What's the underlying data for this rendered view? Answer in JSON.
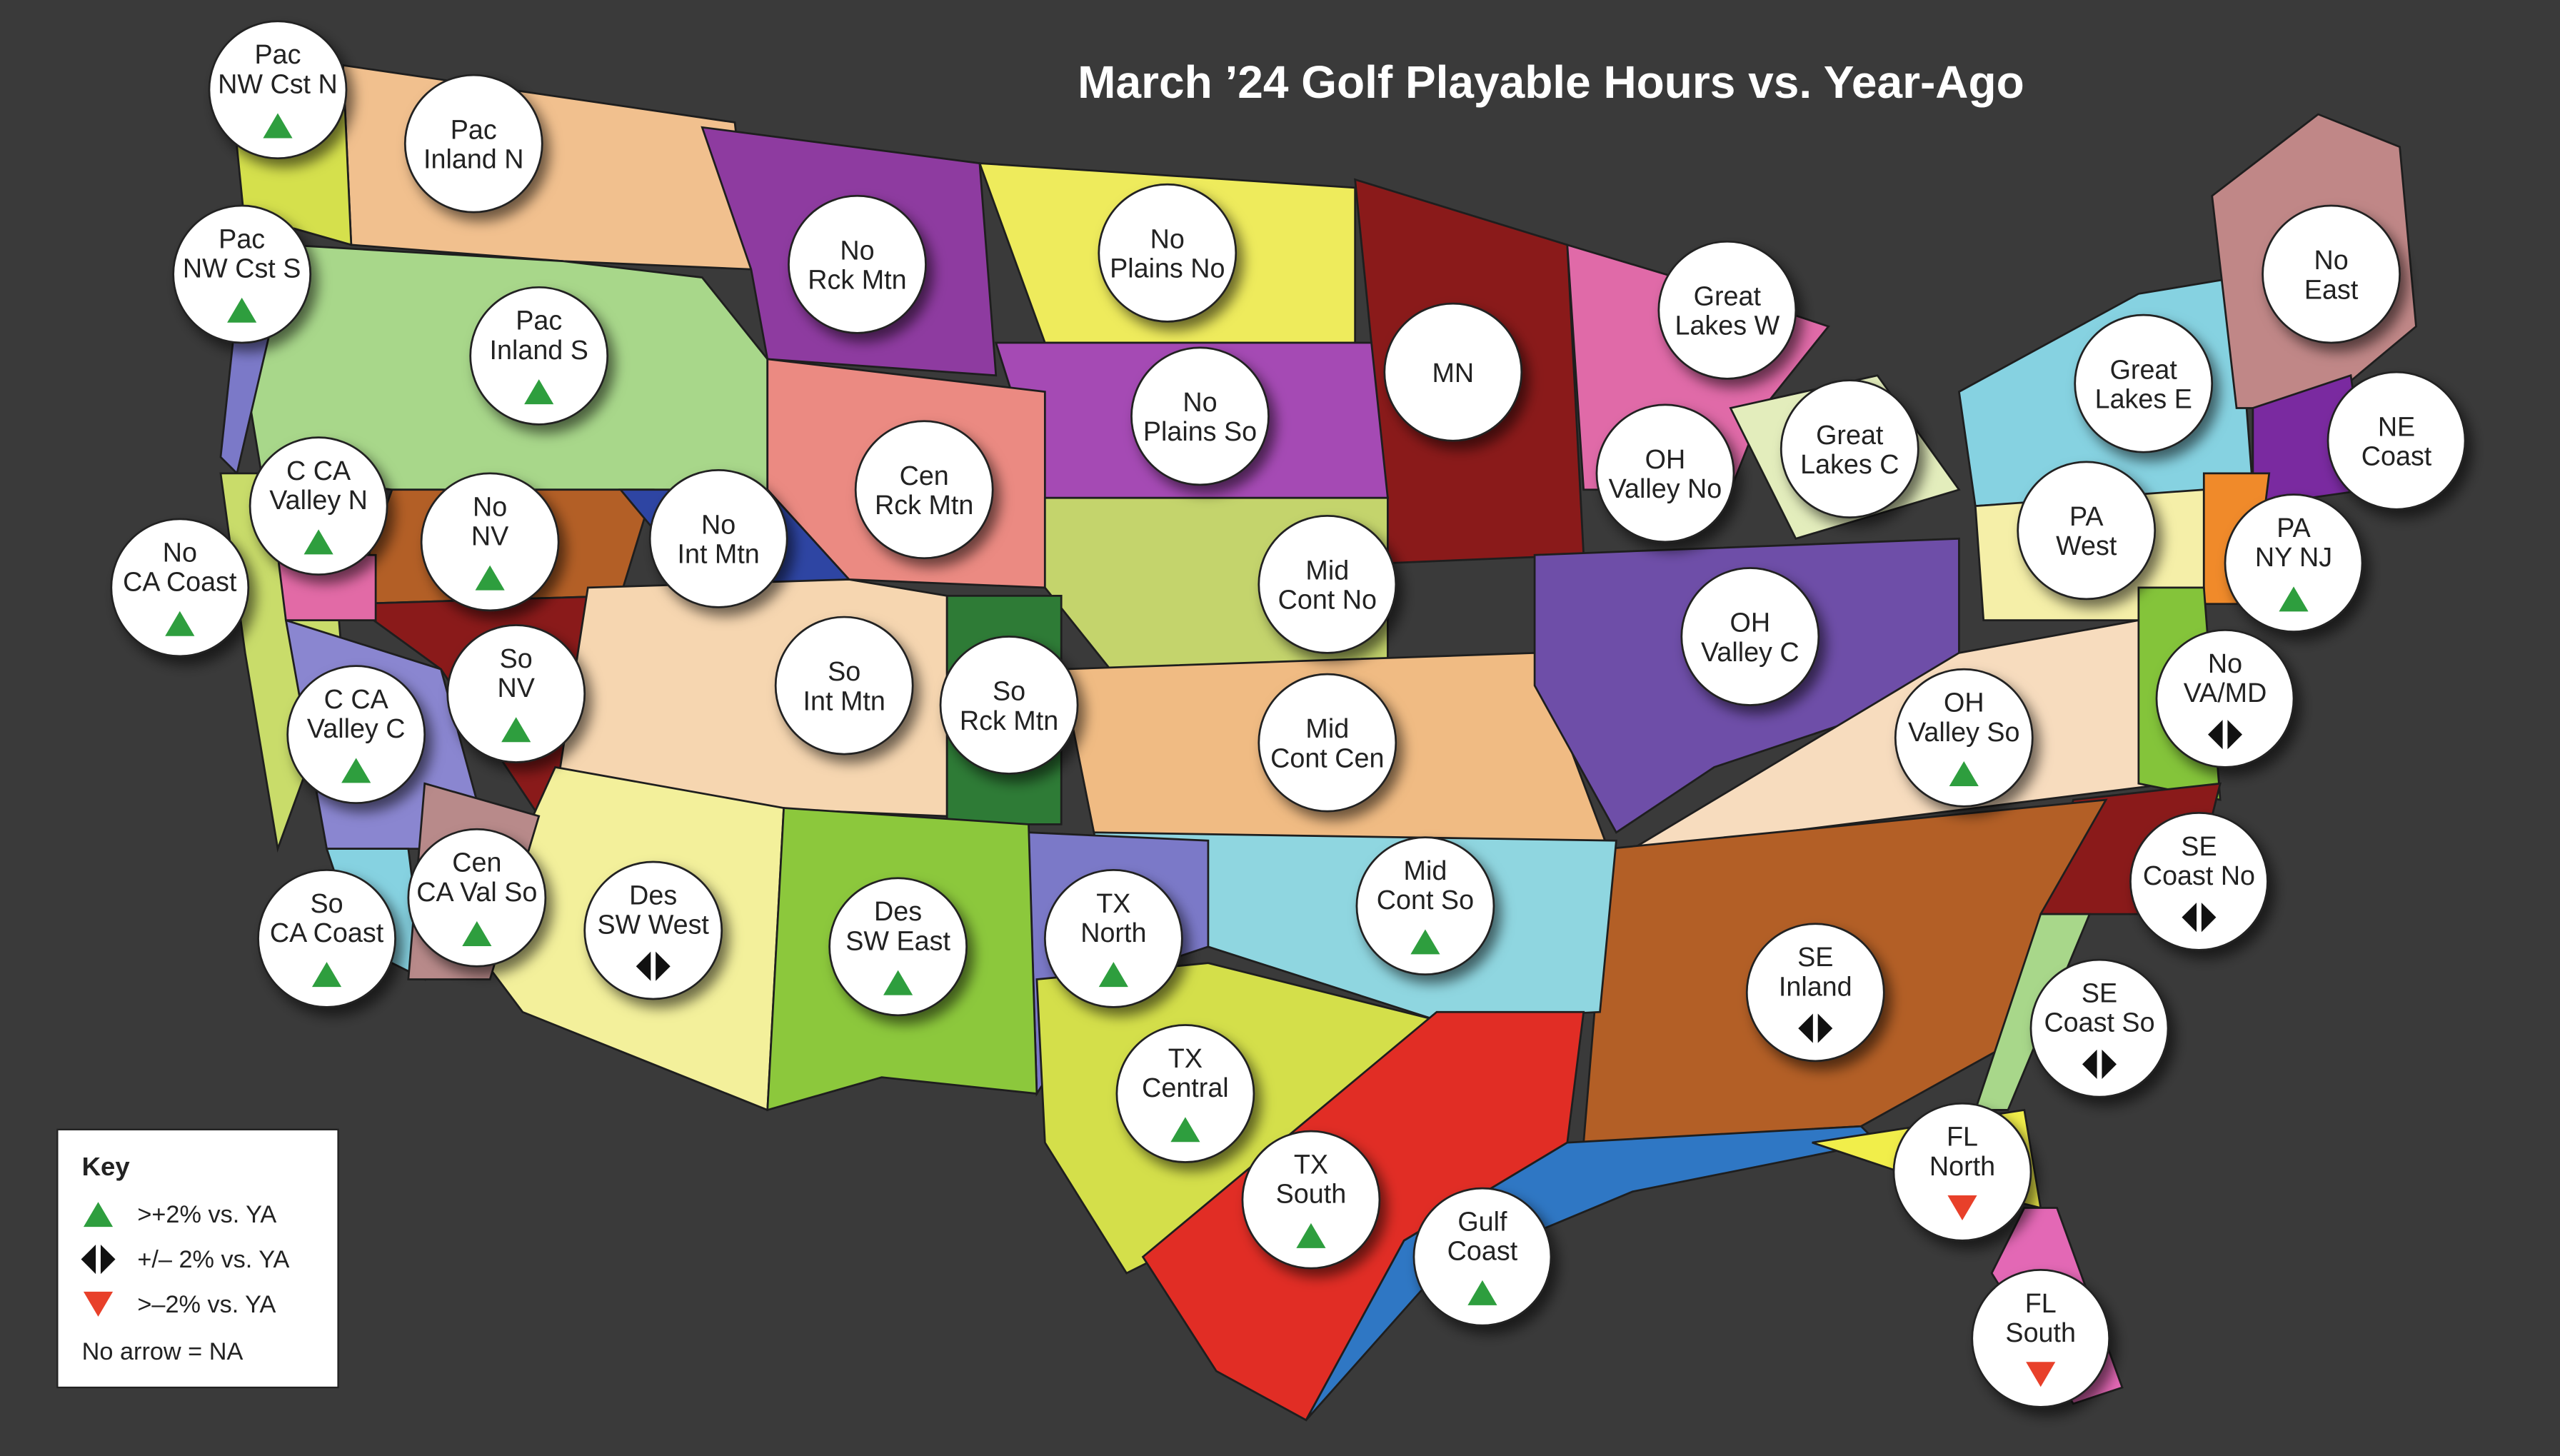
{
  "title": "March ’24 Golf Playable Hours vs. Year-Ago",
  "regions": [
    {
      "label": [
        "Pac",
        "NW Cst N"
      ],
      "trend": "up"
    },
    {
      "label": [
        "Pac",
        "Inland N"
      ]
    },
    {
      "label": [
        "Pac",
        "NW Cst S"
      ],
      "trend": "up"
    },
    {
      "label": [
        "No",
        "Rck Mtn"
      ]
    },
    {
      "label": [
        "No",
        "Plains No"
      ]
    },
    {
      "label": [
        "Pac",
        "Inland S"
      ],
      "trend": "up"
    },
    {
      "label": [
        "No",
        "Plains So"
      ]
    },
    {
      "label": [
        "MN"
      ]
    },
    {
      "label": [
        "Great",
        "Lakes W"
      ]
    },
    {
      "label": [
        "No",
        "East"
      ]
    },
    {
      "label": [
        "Great",
        "Lakes E"
      ]
    },
    {
      "label": [
        "NE",
        "Coast"
      ]
    },
    {
      "label": [
        "Great",
        "Lakes C"
      ]
    },
    {
      "label": [
        "OH",
        "Valley No"
      ]
    },
    {
      "label": [
        "Cen",
        "Rck Mtn"
      ]
    },
    {
      "label": [
        "C CA",
        "Valley N"
      ],
      "trend": "up"
    },
    {
      "label": [
        "No",
        "NV"
      ],
      "trend": "up"
    },
    {
      "label": [
        "No",
        "Int Mtn"
      ]
    },
    {
      "label": [
        "Mid",
        "Cont No"
      ]
    },
    {
      "label": [
        "PA",
        "West"
      ]
    },
    {
      "label": [
        "PA",
        "NY NJ"
      ],
      "trend": "up"
    },
    {
      "label": [
        "No",
        "CA Coast"
      ],
      "trend": "up"
    },
    {
      "label": [
        "OH",
        "Valley C"
      ]
    },
    {
      "label": [
        "So",
        "NV"
      ],
      "trend": "up"
    },
    {
      "label": [
        "So",
        "Int Mtn"
      ]
    },
    {
      "label": [
        "So",
        "Rck Mtn"
      ]
    },
    {
      "label": [
        "Mid",
        "Cont Cen"
      ]
    },
    {
      "label": [
        "C CA",
        "Valley C"
      ],
      "trend": "up"
    },
    {
      "label": [
        "OH",
        "Valley So"
      ],
      "trend": "up"
    },
    {
      "label": [
        "No",
        "VA/MD"
      ],
      "trend": "flat"
    },
    {
      "label": [
        "SE",
        "Coast No"
      ],
      "trend": "flat"
    },
    {
      "label": [
        "Cen",
        "CA Val So"
      ],
      "trend": "up"
    },
    {
      "label": [
        "Des",
        "SW West"
      ],
      "trend": "flat"
    },
    {
      "label": [
        "Des",
        "SW East"
      ],
      "trend": "up"
    },
    {
      "label": [
        "TX",
        "North"
      ],
      "trend": "up"
    },
    {
      "label": [
        "Mid",
        "Cont So"
      ],
      "trend": "up"
    },
    {
      "label": [
        "So",
        "CA Coast"
      ],
      "trend": "up"
    },
    {
      "label": [
        "SE",
        "Inland"
      ],
      "trend": "flat"
    },
    {
      "label": [
        "SE",
        "Coast So"
      ],
      "trend": "flat"
    },
    {
      "label": [
        "TX",
        "Central"
      ],
      "trend": "up"
    },
    {
      "label": [
        "TX",
        "South"
      ],
      "trend": "up"
    },
    {
      "label": [
        "Gulf",
        "Coast"
      ],
      "trend": "up"
    },
    {
      "label": [
        "FL",
        "North"
      ],
      "trend": "down"
    },
    {
      "label": [
        "FL",
        "South"
      ],
      "trend": "down"
    }
  ],
  "key": {
    "title": "Key",
    "items": [
      {
        "trend": "up",
        "text": ">+2% vs. YA"
      },
      {
        "trend": "flat",
        "text": "+/– 2% vs. YA"
      },
      {
        "trend": "down",
        "text": ">–2% vs. YA"
      }
    ],
    "note": "No arrow = NA"
  }
}
